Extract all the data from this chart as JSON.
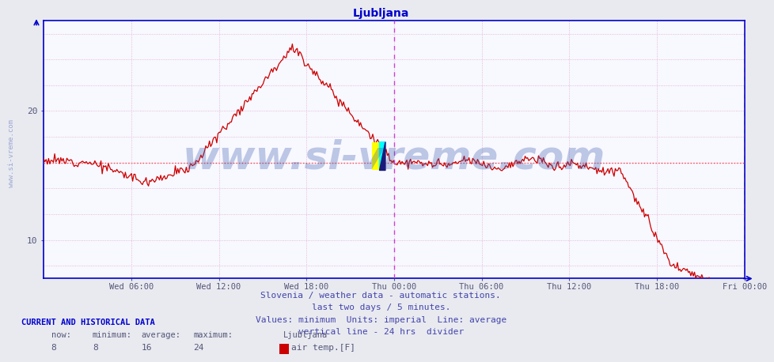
{
  "title": "Ljubljana",
  "title_color": "#0000cc",
  "title_fontsize": 10,
  "background_color": "#e8eaf0",
  "plot_bg_color": "#f8f8ff",
  "line_color": "#cc0000",
  "average_line_color": "#ff4444",
  "vertical_divider_color": "#cc44cc",
  "axis_color": "#0000cc",
  "tick_label_color": "#555577",
  "grid_color_v": "#ddaacc",
  "grid_color_h": "#ddaacc",
  "ylim": [
    7,
    27
  ],
  "yticks": [
    10,
    20
  ],
  "y_extra_ticks": [
    16
  ],
  "x_labels": [
    "Wed 06:00",
    "Wed 12:00",
    "Wed 18:00",
    "Thu 00:00",
    "Thu 06:00",
    "Thu 12:00",
    "Thu 18:00",
    "Fri 00:00"
  ],
  "x_tick_pos": [
    6,
    12,
    18,
    24,
    30,
    36,
    42,
    48
  ],
  "average_value": 16,
  "divider_x": 24.0,
  "num_points": 576,
  "footer_lines": [
    "Slovenia / weather data - automatic stations.",
    "last two days / 5 minutes.",
    "Values: minimum  Units: imperial  Line: average",
    "vertical line - 24 hrs  divider"
  ],
  "footer_color": "#4444aa",
  "footer_fontsize": 8,
  "watermark_text": "www.si-vreme.com",
  "watermark_color": "#3355aa",
  "watermark_alpha": 0.3,
  "watermark_fontsize": 36,
  "sidebar_text": "www.si-vreme.com",
  "sidebar_color": "#4455aa",
  "sidebar_alpha": 0.45,
  "sidebar_fontsize": 6.5,
  "info_header": "CURRENT AND HISTORICAL DATA",
  "info_header_color": "#0000cc",
  "info_now": "8",
  "info_min": "8",
  "info_avg": "16",
  "info_max": "24",
  "info_station": "Ljubljana",
  "info_sensor": "air temp.[F]",
  "legend_color": "#cc0000"
}
